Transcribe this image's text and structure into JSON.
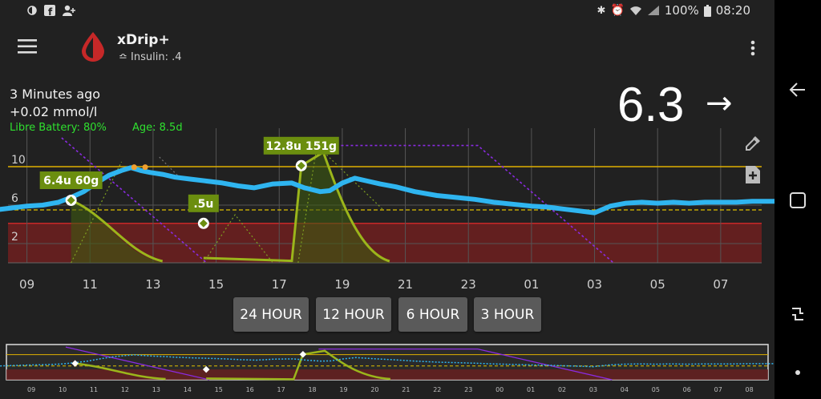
{
  "status_bar": {
    "battery": "100%",
    "time": "08:20"
  },
  "toolbar": {
    "title": "xDrip+",
    "subtitle": "≏ Insulin: .4",
    "menu_icon": "hamburger-menu-icon",
    "overflow_icon": "more-vert-icon",
    "logo_icon": "blood-drop-icon"
  },
  "info": {
    "age_text": "3 Minutes ago",
    "delta": "+0.02 mmol/l",
    "battery": "Libre Battery: 80%",
    "sensor_age": "Age: 8.5d"
  },
  "glucose": {
    "value": "6.3",
    "trend": "→"
  },
  "chart_data": {
    "type": "line",
    "y_ticks": [
      "10",
      "6",
      "2"
    ],
    "x_ticks": [
      "09",
      "11",
      "13",
      "15",
      "17",
      "19",
      "21",
      "23",
      "01",
      "03",
      "05",
      "07"
    ],
    "ylim": [
      0,
      14
    ],
    "high_line": 10,
    "low_line": 5.5,
    "series": [
      {
        "color": "#2fb5f0",
        "x": [
          8.0,
          8.5,
          9.0,
          9.5,
          10.0,
          10.4,
          10.8,
          11.2,
          11.6,
          12.0,
          12.3,
          12.6,
          12.9,
          13.3,
          13.7,
          14.2,
          14.7,
          15.2,
          15.7,
          16.2,
          16.8,
          17.4,
          17.8,
          18.3,
          18.6,
          19.0,
          19.4,
          19.8,
          20.2,
          20.7,
          21.3,
          22.0,
          22.6,
          23.2,
          23.8,
          24.4,
          25.0,
          25.5,
          26.0,
          26.5,
          27.0,
          27.5,
          28.0,
          28.5,
          29.0,
          29.5,
          30.0,
          30.5,
          31.0,
          31.5,
          32.0,
          32.5,
          33.0
        ],
        "y": [
          5.5,
          5.7,
          5.9,
          6.0,
          6.3,
          6.8,
          7.4,
          8.3,
          9.1,
          9.6,
          9.9,
          9.6,
          9.4,
          9.2,
          8.9,
          8.7,
          8.5,
          8.3,
          8.0,
          7.8,
          8.2,
          8.3,
          7.8,
          7.4,
          7.5,
          8.3,
          8.8,
          8.5,
          8.2,
          7.9,
          7.4,
          7.0,
          6.8,
          6.6,
          6.3,
          6.1,
          5.9,
          5.8,
          5.6,
          5.4,
          5.2,
          5.9,
          6.2,
          6.3,
          6.2,
          6.3,
          6.2,
          6.3,
          6.3,
          6.3,
          6.4,
          6.4,
          6.4
        ]
      }
    ],
    "treatments": [
      {
        "label": "6.4u 60g",
        "x": 10.4,
        "y": 6.5
      },
      {
        "label": ".5u",
        "x": 14.6,
        "y": 4.1
      },
      {
        "label": "12.8u 151g",
        "x": 17.7,
        "y": 10.1
      }
    ]
  },
  "range_buttons": [
    "24 HOUR",
    "12 HOUR",
    "6 HOUR",
    "3 HOUR"
  ],
  "preview": {
    "x_ticks": [
      "09",
      "10",
      "11",
      "12",
      "13",
      "14",
      "15",
      "16",
      "17",
      "18",
      "19",
      "20",
      "21",
      "22",
      "23",
      "00",
      "01",
      "02",
      "03",
      "04",
      "05",
      "06",
      "07",
      "08"
    ]
  },
  "nav": {
    "back_icon": "back-arrow-icon",
    "home_icon": "home-square-icon",
    "recents_icon": "recents-icon"
  }
}
